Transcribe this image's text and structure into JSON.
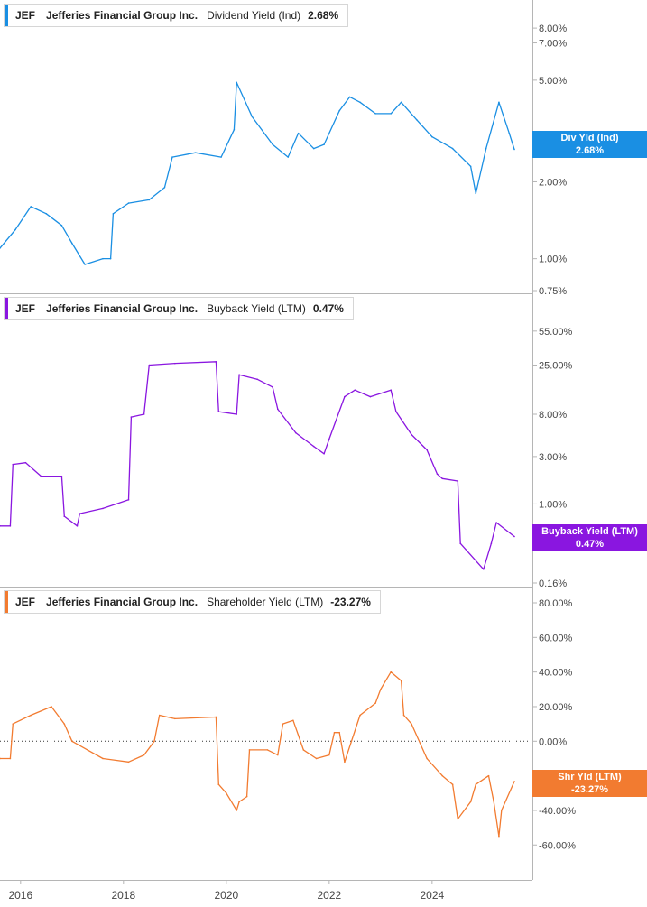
{
  "chart_data": [
    {
      "type": "line",
      "ticker": "JEF",
      "company": "Jefferies Financial Group Inc.",
      "metric": "Dividend Yield (Ind)",
      "value": "2.68%",
      "badge_label": "Div Yld (Ind)",
      "badge_value": "2.68%",
      "color": "#1a8fe3",
      "scale": "log",
      "ylim": [
        0.75,
        9.5
      ],
      "yticks": [
        "0.75%",
        "1.00%",
        "2.00%",
        "3.00%",
        "5.00%",
        "7.00%",
        "8.00%"
      ],
      "ytick_values": [
        0.75,
        1.0,
        2.0,
        3.0,
        5.0,
        7.0,
        8.0
      ],
      "x": [
        2015.6,
        2015.9,
        2016.2,
        2016.5,
        2016.8,
        2017.0,
        2017.25,
        2017.6,
        2017.75,
        2017.8,
        2018.1,
        2018.5,
        2018.8,
        2018.95,
        2019.4,
        2019.9,
        2020.15,
        2020.2,
        2020.5,
        2020.9,
        2021.2,
        2021.4,
        2021.7,
        2021.9,
        2022.2,
        2022.4,
        2022.6,
        2022.9,
        2023.2,
        2023.4,
        2023.7,
        2024.0,
        2024.4,
        2024.75,
        2024.85,
        2025.05,
        2025.3,
        2025.5,
        2025.6
      ],
      "y": [
        1.1,
        1.3,
        1.6,
        1.5,
        1.35,
        1.15,
        0.95,
        1.0,
        1.0,
        1.5,
        1.65,
        1.7,
        1.9,
        2.5,
        2.6,
        2.5,
        3.2,
        4.9,
        3.6,
        2.8,
        2.5,
        3.1,
        2.7,
        2.8,
        3.8,
        4.3,
        4.1,
        3.7,
        3.7,
        4.1,
        3.5,
        3.0,
        2.7,
        2.3,
        1.8,
        2.7,
        4.1,
        3.1,
        2.68
      ]
    },
    {
      "type": "line",
      "ticker": "JEF",
      "company": "Jefferies Financial Group Inc.",
      "metric": "Buyback Yield (LTM)",
      "value": "0.47%",
      "badge_label": "Buyback Yield (LTM)",
      "badge_value": "0.47%",
      "color": "#8a16e0",
      "scale": "log",
      "ylim": [
        0.16,
        75
      ],
      "yticks": [
        "0.16%",
        "1.00%",
        "3.00%",
        "8.00%",
        "25.00%",
        "55.00%"
      ],
      "ytick_values": [
        0.16,
        1.0,
        3.0,
        8.0,
        25.0,
        55.0
      ],
      "x": [
        2015.6,
        2015.8,
        2015.85,
        2016.1,
        2016.4,
        2016.8,
        2016.85,
        2017.1,
        2017.15,
        2017.6,
        2018.1,
        2018.15,
        2018.4,
        2018.5,
        2019.0,
        2019.8,
        2019.85,
        2020.2,
        2020.25,
        2020.6,
        2020.9,
        2021.0,
        2021.35,
        2021.7,
        2021.9,
        2022.0,
        2022.3,
        2022.5,
        2022.8,
        2023.2,
        2023.3,
        2023.6,
        2023.9,
        2024.1,
        2024.2,
        2024.5,
        2024.55,
        2025.0,
        2025.15,
        2025.25,
        2025.6
      ],
      "y": [
        0.6,
        0.6,
        2.5,
        2.6,
        1.9,
        1.9,
        0.75,
        0.6,
        0.8,
        0.9,
        1.1,
        7.5,
        8,
        25,
        26,
        27,
        8.5,
        8.0,
        20,
        18,
        15,
        9,
        5.2,
        3.8,
        3.2,
        4.5,
        12,
        14,
        12,
        14,
        8.5,
        5.0,
        3.5,
        2.0,
        1.8,
        1.7,
        0.4,
        0.22,
        0.4,
        0.65,
        0.47
      ]
    },
    {
      "type": "line",
      "ticker": "JEF",
      "company": "Jefferies Financial Group Inc.",
      "metric": "Shareholder Yield (LTM)",
      "value": "-23.27%",
      "badge_label": "Shr Yld (LTM)",
      "badge_value": "-23.27%",
      "color": "#f27b30",
      "scale": "linear",
      "ylim": [
        -75,
        80
      ],
      "yticks": [
        "-60.00%",
        "-40.00%",
        "-20.00%",
        "0.00%",
        "20.00%",
        "40.00%",
        "60.00%",
        "80.00%"
      ],
      "ytick_values": [
        -60,
        -40,
        -20,
        0,
        20,
        40,
        60,
        80
      ],
      "zero_line": true,
      "x": [
        2015.6,
        2015.8,
        2015.85,
        2016.2,
        2016.6,
        2016.85,
        2017.0,
        2017.3,
        2017.6,
        2018.1,
        2018.4,
        2018.6,
        2018.7,
        2019.0,
        2019.8,
        2019.85,
        2020.0,
        2020.2,
        2020.25,
        2020.4,
        2020.45,
        2020.8,
        2021.0,
        2021.1,
        2021.3,
        2021.5,
        2021.75,
        2022.0,
        2022.1,
        2022.2,
        2022.3,
        2022.6,
        2022.9,
        2023.0,
        2023.2,
        2023.4,
        2023.45,
        2023.6,
        2023.9,
        2024.2,
        2024.4,
        2024.5,
        2024.75,
        2024.85,
        2025.1,
        2025.2,
        2025.3,
        2025.35,
        2025.6
      ],
      "y": [
        -10,
        -10,
        10,
        15,
        20,
        10,
        0,
        -5,
        -10,
        -12,
        -8,
        0,
        15,
        13,
        14,
        -25,
        -30,
        -40,
        -35,
        -32,
        -5,
        -5,
        -8,
        10,
        12,
        -5,
        -10,
        -8,
        5,
        5,
        -12,
        15,
        22,
        30,
        40,
        35,
        15,
        10,
        -10,
        -20,
        -25,
        -45,
        -35,
        -25,
        -20,
        -35,
        -55,
        -40,
        -23.27
      ]
    }
  ],
  "x_ticks": [
    "2016",
    "2018",
    "2020",
    "2022",
    "2024"
  ],
  "x_tick_values": [
    2016,
    2018,
    2020,
    2022,
    2024
  ]
}
